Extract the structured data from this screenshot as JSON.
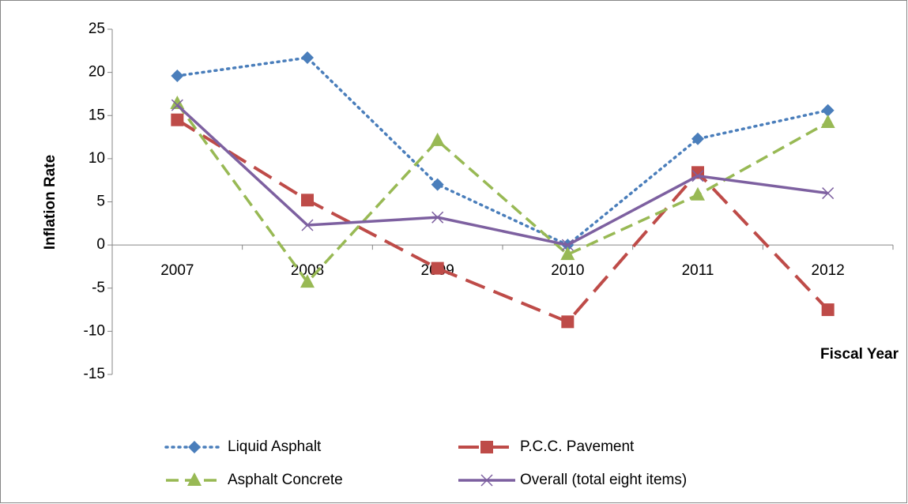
{
  "chart_data": {
    "type": "line",
    "x_label": "Fiscal Year",
    "y_label": "Inflation Rate",
    "categories": [
      "2007",
      "2008",
      "2009",
      "2010",
      "2011",
      "2012"
    ],
    "ylim": [
      -15,
      25
    ],
    "yticks": [
      -15,
      -10,
      -5,
      0,
      5,
      10,
      15,
      20,
      25
    ],
    "legend": "bottom",
    "series": [
      {
        "name": "Liquid Asphalt",
        "color": "#4a7ebb",
        "dash": "dotted",
        "marker": "diamond",
        "values": [
          19.6,
          21.7,
          7.0,
          0,
          12.3,
          15.6
        ]
      },
      {
        "name": "P.C.C. Pavement",
        "color": "#be4b48",
        "dash": "long-dash",
        "marker": "square",
        "values": [
          14.5,
          5.2,
          -2.7,
          -8.9,
          8.4,
          -7.5
        ]
      },
      {
        "name": "Asphalt Concrete",
        "color": "#98b954",
        "dash": "dash",
        "marker": "triangle",
        "values": [
          16.4,
          -4.3,
          12.1,
          -1.1,
          5.8,
          14.2
        ]
      },
      {
        "name": "Overall (total eight items)",
        "color": "#7d60a0",
        "dash": "solid",
        "marker": "x",
        "values": [
          16.2,
          2.3,
          3.2,
          0,
          8.0,
          6.0
        ]
      }
    ]
  }
}
